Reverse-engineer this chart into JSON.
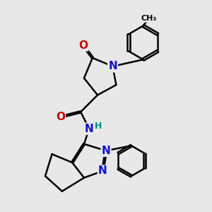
{
  "background_color": "#e8e8e8",
  "bond_color": "#000000",
  "bond_width": 1.8,
  "atom_colors": {
    "N": "#1010cc",
    "O": "#cc0000",
    "C": "#000000",
    "H": "#008888"
  },
  "font_size_atom": 11,
  "font_size_ch3": 9,
  "font_size_h": 9
}
